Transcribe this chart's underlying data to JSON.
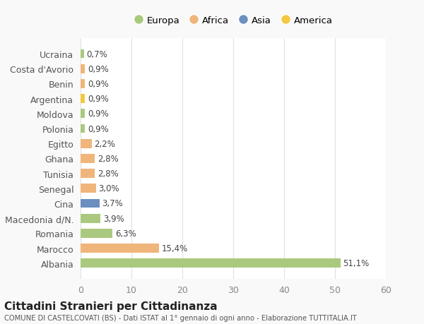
{
  "categories": [
    "Albania",
    "Marocco",
    "Romania",
    "Macedonia d/N.",
    "Cina",
    "Senegal",
    "Tunisia",
    "Ghana",
    "Egitto",
    "Polonia",
    "Moldova",
    "Argentina",
    "Benin",
    "Costa d'Avorio",
    "Ucraina"
  ],
  "values": [
    51.1,
    15.4,
    6.3,
    3.9,
    3.7,
    3.0,
    2.8,
    2.8,
    2.2,
    0.9,
    0.9,
    0.9,
    0.9,
    0.9,
    0.7
  ],
  "labels": [
    "51,1%",
    "15,4%",
    "6,3%",
    "3,9%",
    "3,7%",
    "3,0%",
    "2,8%",
    "2,8%",
    "2,2%",
    "0,9%",
    "0,9%",
    "0,9%",
    "0,9%",
    "0,9%",
    "0,7%"
  ],
  "colors": [
    "#aac97e",
    "#f0b57a",
    "#aac97e",
    "#aac97e",
    "#6b8fbf",
    "#f0b57a",
    "#f0b57a",
    "#f0b57a",
    "#f0b57a",
    "#aac97e",
    "#aac97e",
    "#f5c842",
    "#f0b57a",
    "#f0b57a",
    "#aac97e"
  ],
  "legend_labels": [
    "Europa",
    "Africa",
    "Asia",
    "America"
  ],
  "legend_colors": [
    "#aac97e",
    "#f0b57a",
    "#6b8fbf",
    "#f5c842"
  ],
  "title": "Cittadini Stranieri per Cittadinanza",
  "subtitle": "COMUNE DI CASTELCOVATI (BS) - Dati ISTAT al 1° gennaio di ogni anno - Elaborazione TUTTITALIA.IT",
  "xlim": [
    0,
    60
  ],
  "xticks": [
    0,
    10,
    20,
    30,
    40,
    50,
    60
  ],
  "background_color": "#f9f9f9",
  "bar_background": "#ffffff",
  "grid_color": "#e0e0e0"
}
